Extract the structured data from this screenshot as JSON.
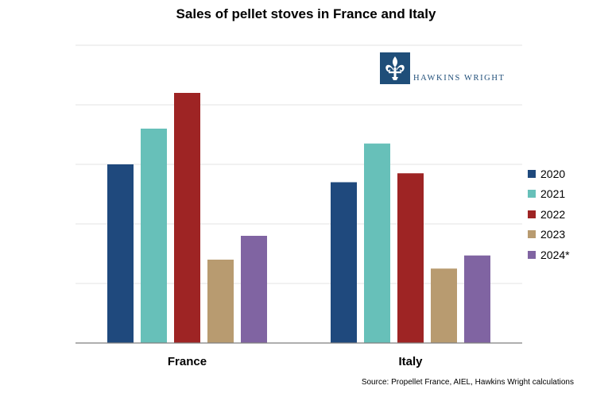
{
  "chart_data": {
    "type": "bar",
    "title": "Sales of pellet stoves in France and Italy",
    "categories": [
      "France",
      "Italy"
    ],
    "series": [
      {
        "name": "2020",
        "color": "#1f497d",
        "values": [
          30,
          27
        ]
      },
      {
        "name": "2021",
        "color": "#67c0b9",
        "values": [
          36,
          33.5
        ]
      },
      {
        "name": "2022",
        "color": "#9e2424",
        "values": [
          42,
          28.5
        ]
      },
      {
        "name": "2023",
        "color": "#b89b70",
        "values": [
          14,
          12.5
        ]
      },
      {
        "name": "2024*",
        "color": "#8064a2",
        "values": [
          18,
          14.7
        ]
      }
    ],
    "ylim": [
      0,
      50
    ],
    "y_gridlines": [
      10,
      20,
      30,
      40,
      50
    ],
    "y_tick_labels_shown": false,
    "grid": true,
    "legend_position": "right"
  },
  "logo": {
    "text": "HAWKINS WRIGHT",
    "color": "#1f4e79"
  },
  "source": "Source: Propellet France, AIEL, Hawkins Wright calculations"
}
